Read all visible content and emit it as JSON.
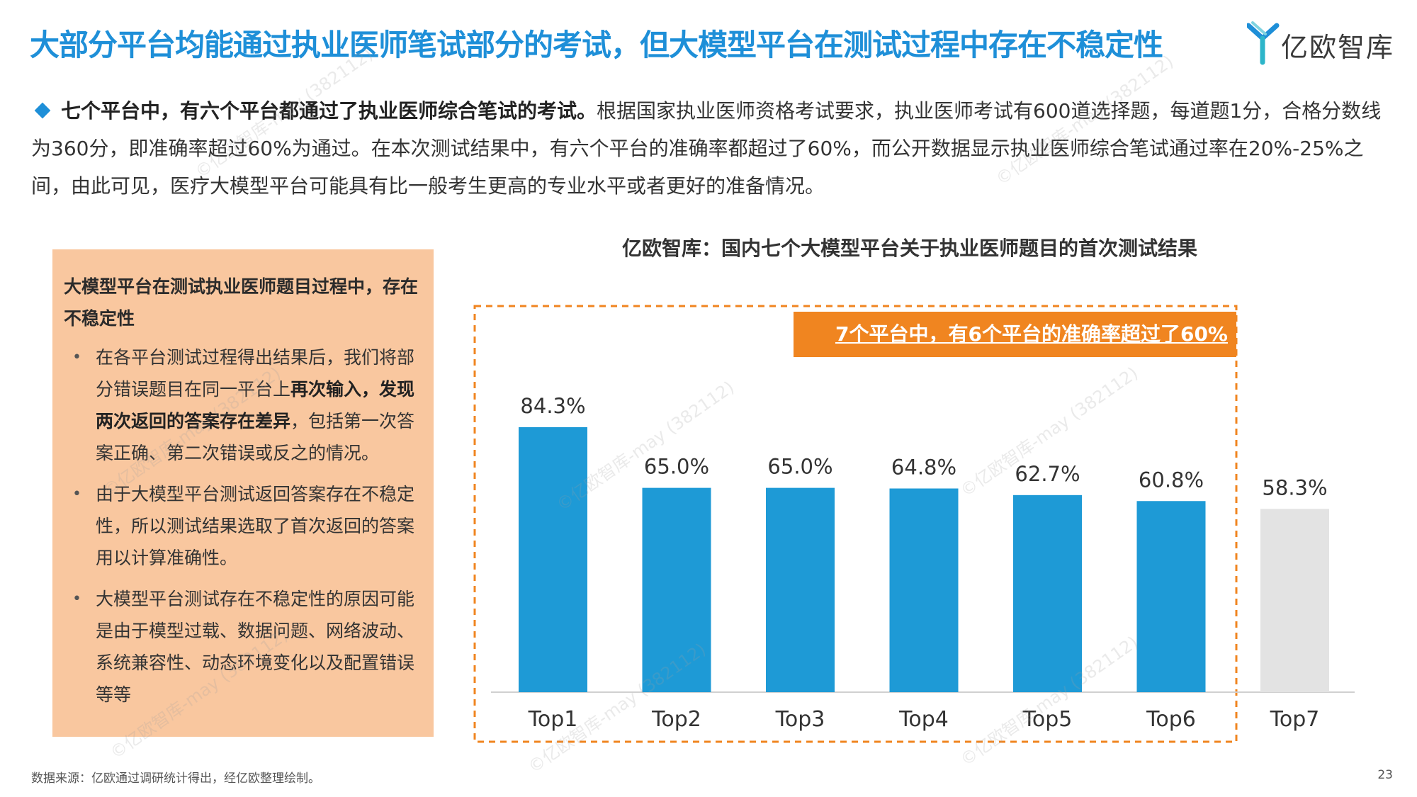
{
  "header": {
    "title": "大部分平台均能通过执业医师笔试部分的考试，但大模型平台在测试过程中存在不稳定性",
    "logo_text": "亿欧智库",
    "accent_color": "#1E8FD8"
  },
  "intro": {
    "bold": "七个平台中，有六个平台都通过了执业医师综合笔试的考试。",
    "text": "根据国家执业医师资格考试要求，执业医师考试有600道选择题，每道题1分，合格分数线为360分，即准确率超过60%为通过。在本次测试结果中，有六个平台的准确率都超过了60%，而公开数据显示执业医师综合笔试通过率在20%-25%之间，由此可见，医疗大模型平台可能具有比一般考生更高的专业水平或者更好的准备情况。"
  },
  "side_box": {
    "heading": "大模型平台在测试执业医师题目过程中，存在不稳定性",
    "items": [
      {
        "pre": "在各平台测试过程得出结果后，我们将部分错误题目在同一平台上",
        "bold": "再次输入，发现两次返回的答案存在差异",
        "post": "，包括第一次答案正确、第二次错误或反之的情况。"
      },
      {
        "pre": "由于大模型平台测试返回答案存在不稳定性，所以测试结果选取了首次返回的答案用以计算准确性。",
        "bold": "",
        "post": ""
      },
      {
        "pre": "大模型平台测试存在不稳定性的原因可能是由于模型过载、数据问题、网络波动、系统兼容性、动态环境变化以及配置错误等等",
        "bold": "",
        "post": ""
      }
    ]
  },
  "chart_data": {
    "type": "bar",
    "title": "亿欧智库：国内七个大模型平台关于执业医师题目的首次测试结果",
    "categories": [
      "Top1",
      "Top2",
      "Top3",
      "Top4",
      "Top5",
      "Top6",
      "Top7"
    ],
    "values": [
      84.3,
      65.0,
      65.0,
      64.8,
      62.7,
      60.8,
      58.3
    ],
    "labels": [
      "84.3%",
      "65.0%",
      "65.0%",
      "64.8%",
      "62.7%",
      "60.8%",
      "58.3%"
    ],
    "highlight_count": 6,
    "colors": {
      "pass": "#1E9AD6",
      "fail": "#E3E3E3",
      "callout": "#F08520"
    },
    "callout": "7个平台中，有6个平台的准确率超过了60%",
    "ylim": [
      0,
      100
    ],
    "grid": false
  },
  "footer": {
    "source": "数据来源：亿欧通过调研统计得出，经亿欧整理绘制。",
    "page": "23"
  },
  "watermark": "©亿欧智库-may (382112)"
}
